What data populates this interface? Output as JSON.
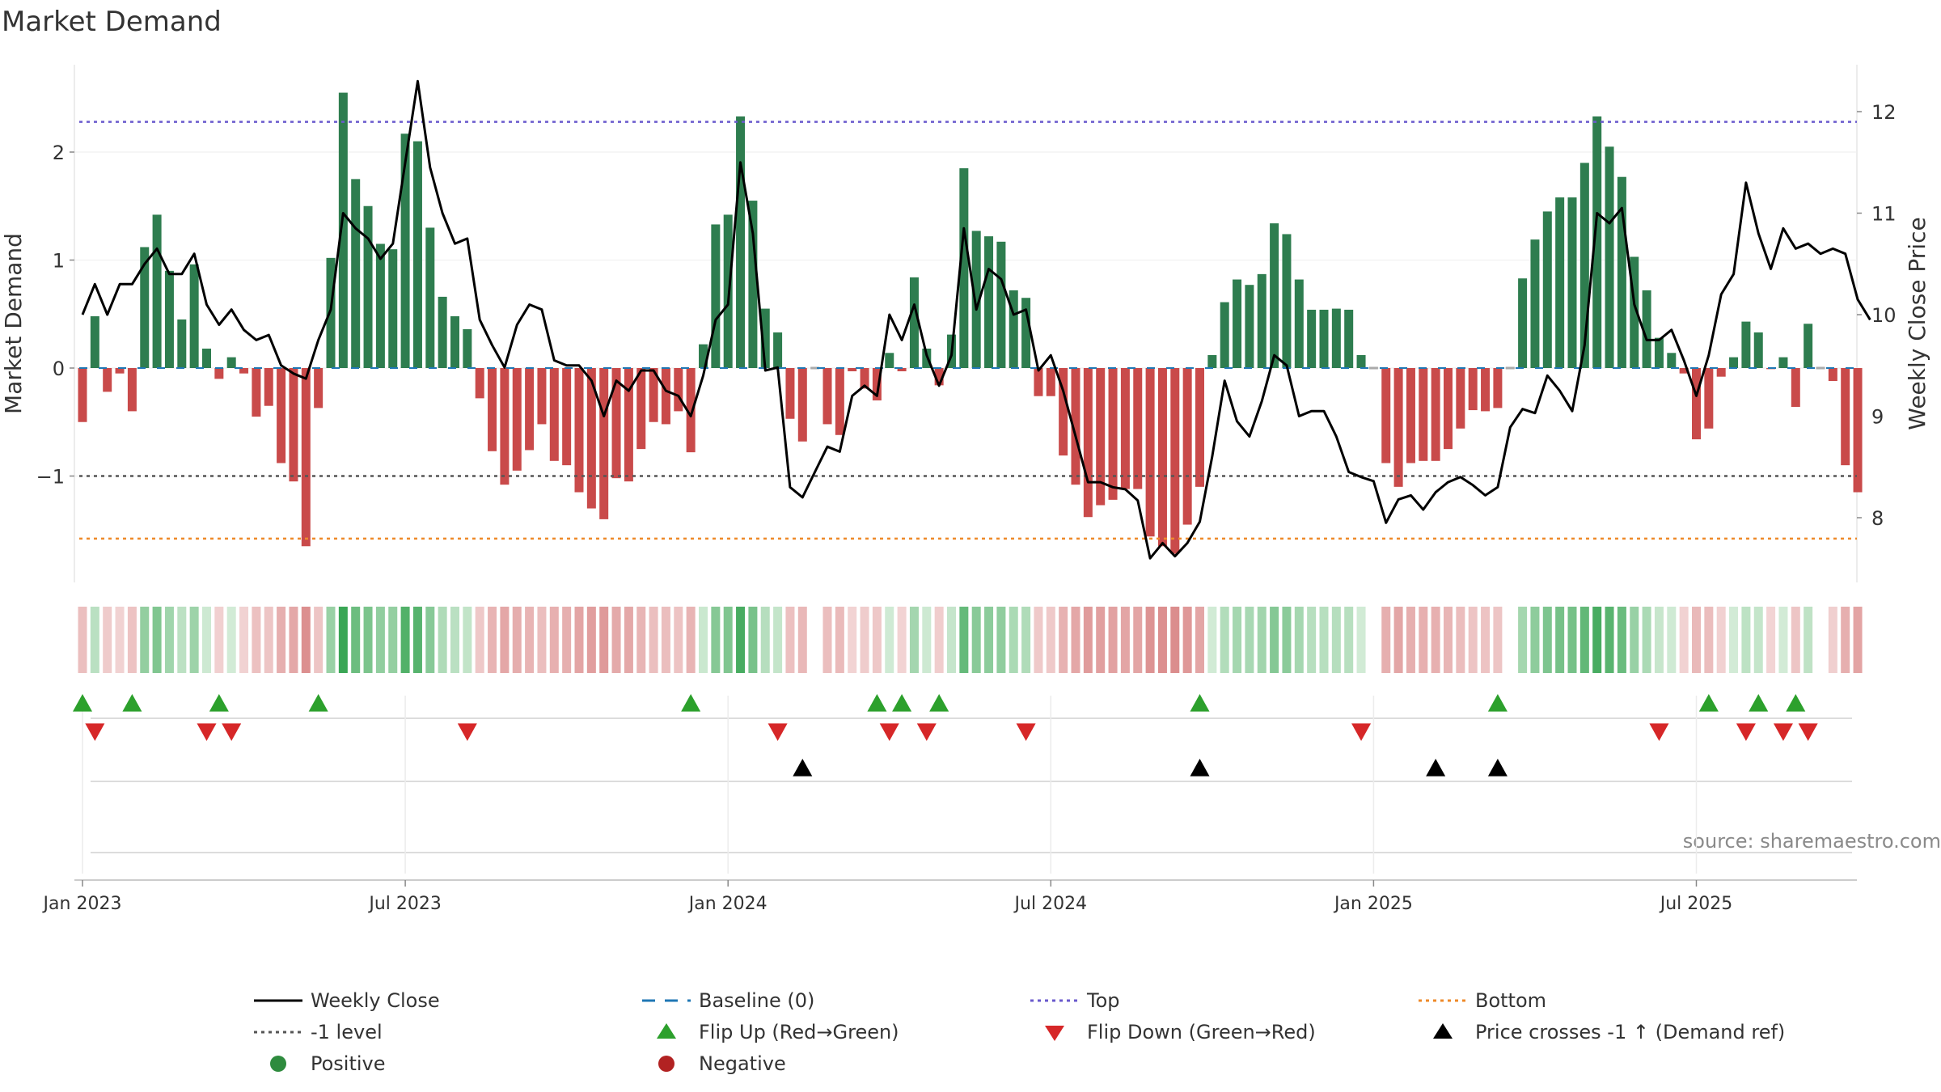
{
  "chart_data": {
    "type": "bar+line",
    "title": "Market Demand",
    "left_axis": {
      "label": "Market Demand",
      "ylim": [
        -2.0,
        2.8
      ],
      "ticks": [
        2,
        1,
        0,
        -1
      ],
      "tick_labels": [
        "2",
        "1",
        "0",
        "−1"
      ]
    },
    "right_axis": {
      "label": "Weekly Close Price",
      "ylim": [
        7.4,
        12.5
      ],
      "ticks": [
        12,
        11,
        10,
        9,
        8
      ],
      "tick_labels": [
        "12",
        "11",
        "10",
        "9",
        "8"
      ]
    },
    "x_axis": {
      "ticks": [
        0,
        26,
        52,
        78,
        104,
        130
      ],
      "tick_labels": [
        "Jan 2023",
        "Jul 2023",
        "Jan 2024",
        "Jul 2024",
        "Jan 2025",
        "Jul 2025"
      ]
    },
    "demand": [
      -0.5,
      0.48,
      -0.22,
      -0.05,
      -0.4,
      1.12,
      1.42,
      0.9,
      0.45,
      0.96,
      0.18,
      -0.1,
      0.1,
      -0.05,
      -0.45,
      -0.35,
      -0.88,
      -1.05,
      -1.65,
      -0.37,
      1.02,
      2.55,
      1.75,
      1.5,
      1.15,
      1.1,
      2.17,
      2.1,
      1.3,
      0.66,
      0.48,
      0.36,
      -0.28,
      -0.77,
      -1.08,
      -0.95,
      -0.76,
      -0.52,
      -0.86,
      -0.9,
      -1.15,
      -1.3,
      -1.4,
      -1.02,
      -1.05,
      -0.75,
      -0.5,
      -0.52,
      -0.4,
      -0.78,
      0.22,
      1.33,
      1.42,
      2.33,
      1.55,
      0.55,
      0.33,
      -0.47,
      -0.68,
      0.0,
      -0.52,
      -0.62,
      -0.03,
      -0.19,
      -0.3,
      0.14,
      -0.03,
      0.84,
      0.18,
      -0.16,
      0.31,
      1.85,
      1.27,
      1.22,
      1.17,
      0.72,
      0.65,
      -0.26,
      -0.26,
      -0.81,
      -1.08,
      -1.38,
      -1.27,
      -1.22,
      -1.12,
      -1.12,
      -1.56,
      -1.65,
      -1.72,
      -1.45,
      -1.1,
      0.12,
      0.61,
      0.82,
      0.77,
      0.87,
      1.34,
      1.24,
      0.82,
      0.54,
      0.54,
      0.55,
      0.54,
      0.12,
      0.0,
      -0.88,
      -1.1,
      -0.88,
      -0.86,
      -0.86,
      -0.75,
      -0.56,
      -0.39,
      -0.4,
      -0.37,
      0.0,
      0.83,
      1.19,
      1.45,
      1.58,
      1.58,
      1.9,
      2.33,
      2.05,
      1.77,
      1.03,
      0.72,
      0.28,
      0.14,
      -0.05,
      -0.66,
      -0.56,
      -0.08,
      0.1,
      0.43,
      0.33,
      -0.01,
      0.1,
      -0.36,
      0.41,
      0.0,
      -0.12,
      -0.9,
      -1.15
    ],
    "weekly_close": [
      10.0,
      10.3,
      10.0,
      10.3,
      10.3,
      10.5,
      10.65,
      10.4,
      10.4,
      10.6,
      10.1,
      9.9,
      10.05,
      9.85,
      9.75,
      9.8,
      9.5,
      9.42,
      9.37,
      9.75,
      10.05,
      11.0,
      10.85,
      10.75,
      10.55,
      10.7,
      11.5,
      12.3,
      11.45,
      11.0,
      10.7,
      10.75,
      9.95,
      9.7,
      9.48,
      9.9,
      10.1,
      10.05,
      9.55,
      9.5,
      9.5,
      9.35,
      9.0,
      9.35,
      9.25,
      9.45,
      9.45,
      9.25,
      9.2,
      9.0,
      9.4,
      9.95,
      10.1,
      11.5,
      10.8,
      9.45,
      9.48,
      8.3,
      8.2,
      8.45,
      8.7,
      8.65,
      9.2,
      9.3,
      9.2,
      10.0,
      9.75,
      10.1,
      9.6,
      9.3,
      9.6,
      10.85,
      10.05,
      10.45,
      10.35,
      10.0,
      10.05,
      9.45,
      9.6,
      9.25,
      8.8,
      8.35,
      8.35,
      8.3,
      8.28,
      8.17,
      7.6,
      7.75,
      7.62,
      7.75,
      7.96,
      8.6,
      9.35,
      8.95,
      8.8,
      9.15,
      9.6,
      9.5,
      9.0,
      9.05,
      9.05,
      8.8,
      8.45,
      8.4,
      8.36,
      7.95,
      8.18,
      8.22,
      8.08,
      8.25,
      8.35,
      8.4,
      8.32,
      8.22,
      8.3,
      8.89,
      9.07,
      9.03,
      9.4,
      9.25,
      9.05,
      9.7,
      11.0,
      10.9,
      11.05,
      10.1,
      9.75,
      9.75,
      9.85,
      9.55,
      9.2,
      9.6,
      10.2,
      10.4,
      11.3,
      10.8,
      10.45,
      10.85,
      10.65,
      10.7,
      10.6,
      10.65,
      10.6,
      10.15,
      9.95
    ],
    "reference_lines": {
      "top": 2.28,
      "minus_one": -1,
      "bottom": -1.58,
      "baseline": 0
    },
    "flip_up_weeks": [
      0,
      4,
      11,
      19,
      49,
      64,
      66,
      69,
      90,
      114,
      131,
      135,
      138
    ],
    "flip_down_weeks": [
      1,
      10,
      12,
      31,
      56,
      65,
      68,
      76,
      103,
      127,
      134,
      137,
      139
    ],
    "price_cross_weeks": [
      58,
      90,
      109,
      114
    ],
    "legend": [
      {
        "label": "Weekly Close",
        "marker": "line",
        "color": "#000000"
      },
      {
        "label": "Baseline (0)",
        "marker": "dash",
        "color": "#1f77b4"
      },
      {
        "label": "Top",
        "marker": "dot",
        "color": "#6a5acd"
      },
      {
        "label": "Bottom",
        "marker": "dot",
        "color": "#ee8a2a"
      },
      {
        "label": "-1 level",
        "marker": "dot",
        "color": "#555555"
      },
      {
        "label": "Flip Up (Red→Green)",
        "marker": "triangle-up",
        "color": "#2ca02c"
      },
      {
        "label": "Flip Down (Green→Red)",
        "marker": "triangle-down",
        "color": "#d62728"
      },
      {
        "label": "Price crosses -1 ↑ (Demand ref)",
        "marker": "triangle-up",
        "color": "#000000"
      },
      {
        "label": "Positive",
        "marker": "circle",
        "color": "#2e8b3e"
      },
      {
        "label": "Negative",
        "marker": "circle",
        "color": "#b22222"
      }
    ],
    "source_note": "source: sharemaestro.com"
  },
  "colors": {
    "positive": "#2e7d4f",
    "negative": "#c94a4a",
    "price": "#000000",
    "top": "#6a5acd",
    "bottom": "#ee8a2a",
    "minus_one": "#555555",
    "baseline": "#1f77b4"
  }
}
